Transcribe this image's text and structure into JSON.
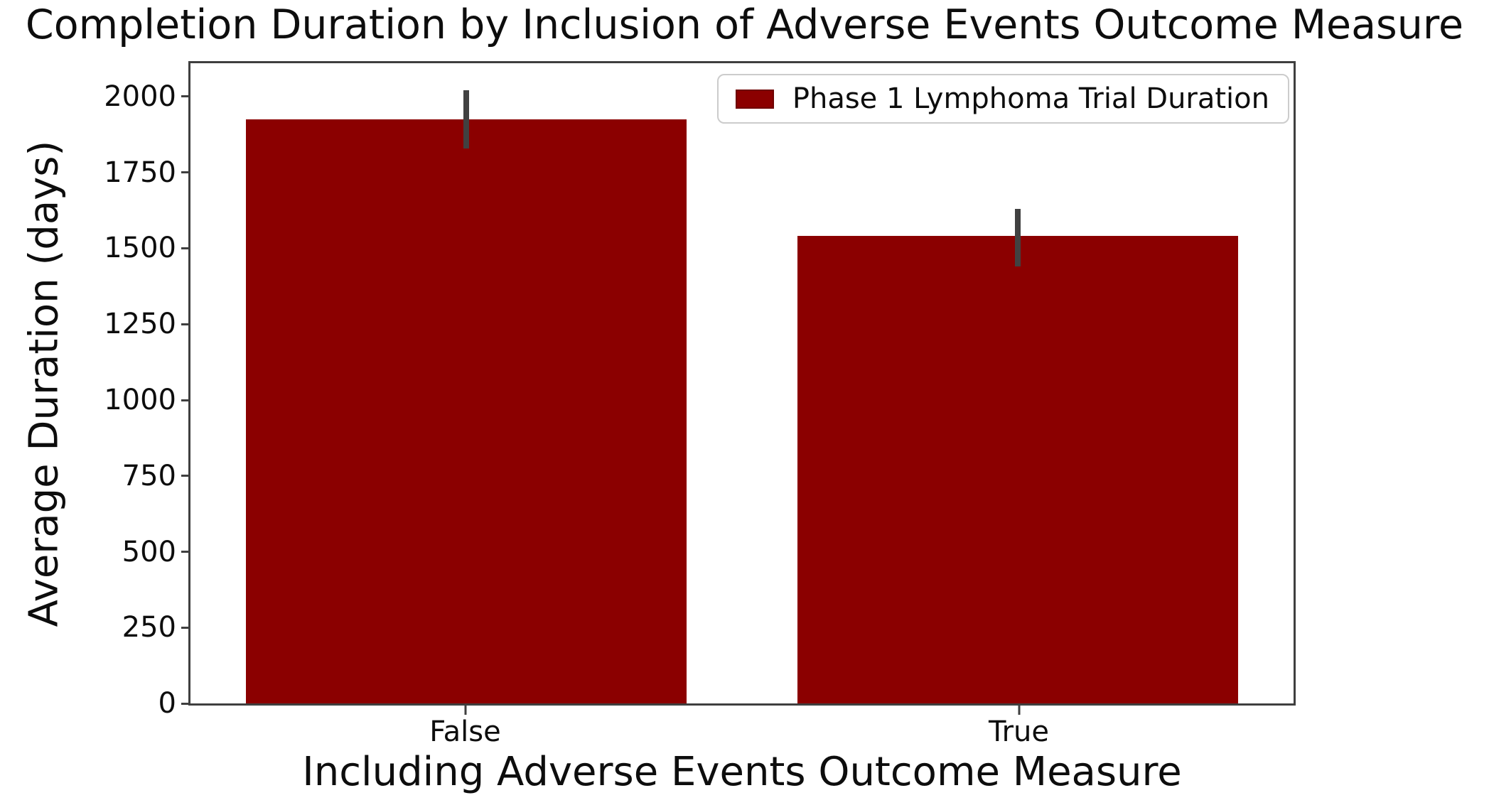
{
  "chart_data": {
    "type": "bar",
    "title": "Completion Duration by Inclusion of Adverse Events Outcome Measure",
    "xlabel": "Including Adverse Events Outcome Measure",
    "ylabel": "Average Duration (days)",
    "categories": [
      "False",
      "True"
    ],
    "series": [
      {
        "name": "Phase 1 Lymphoma Trial Duration",
        "values": [
          1925,
          1540
        ],
        "error_low": [
          1830,
          1440
        ],
        "error_high": [
          2020,
          1630
        ]
      }
    ],
    "ylim": [
      0,
      2110
    ],
    "yticks": [
      0,
      250,
      500,
      750,
      1000,
      1250,
      1500,
      1750,
      2000
    ],
    "grid": false,
    "legend": {
      "position": "upper right",
      "entries": [
        "Phase 1 Lymphoma Trial Duration"
      ]
    },
    "colors": {
      "bar": "#8B0000",
      "bar-edge": "#6e0000",
      "error": "#414141",
      "frame": "#3f3f3f",
      "text": "#111111",
      "legend-border": "#cccccc"
    },
    "layout": {
      "bar_centers_pct": [
        25,
        75
      ],
      "bar_width_pct": 40
    }
  }
}
